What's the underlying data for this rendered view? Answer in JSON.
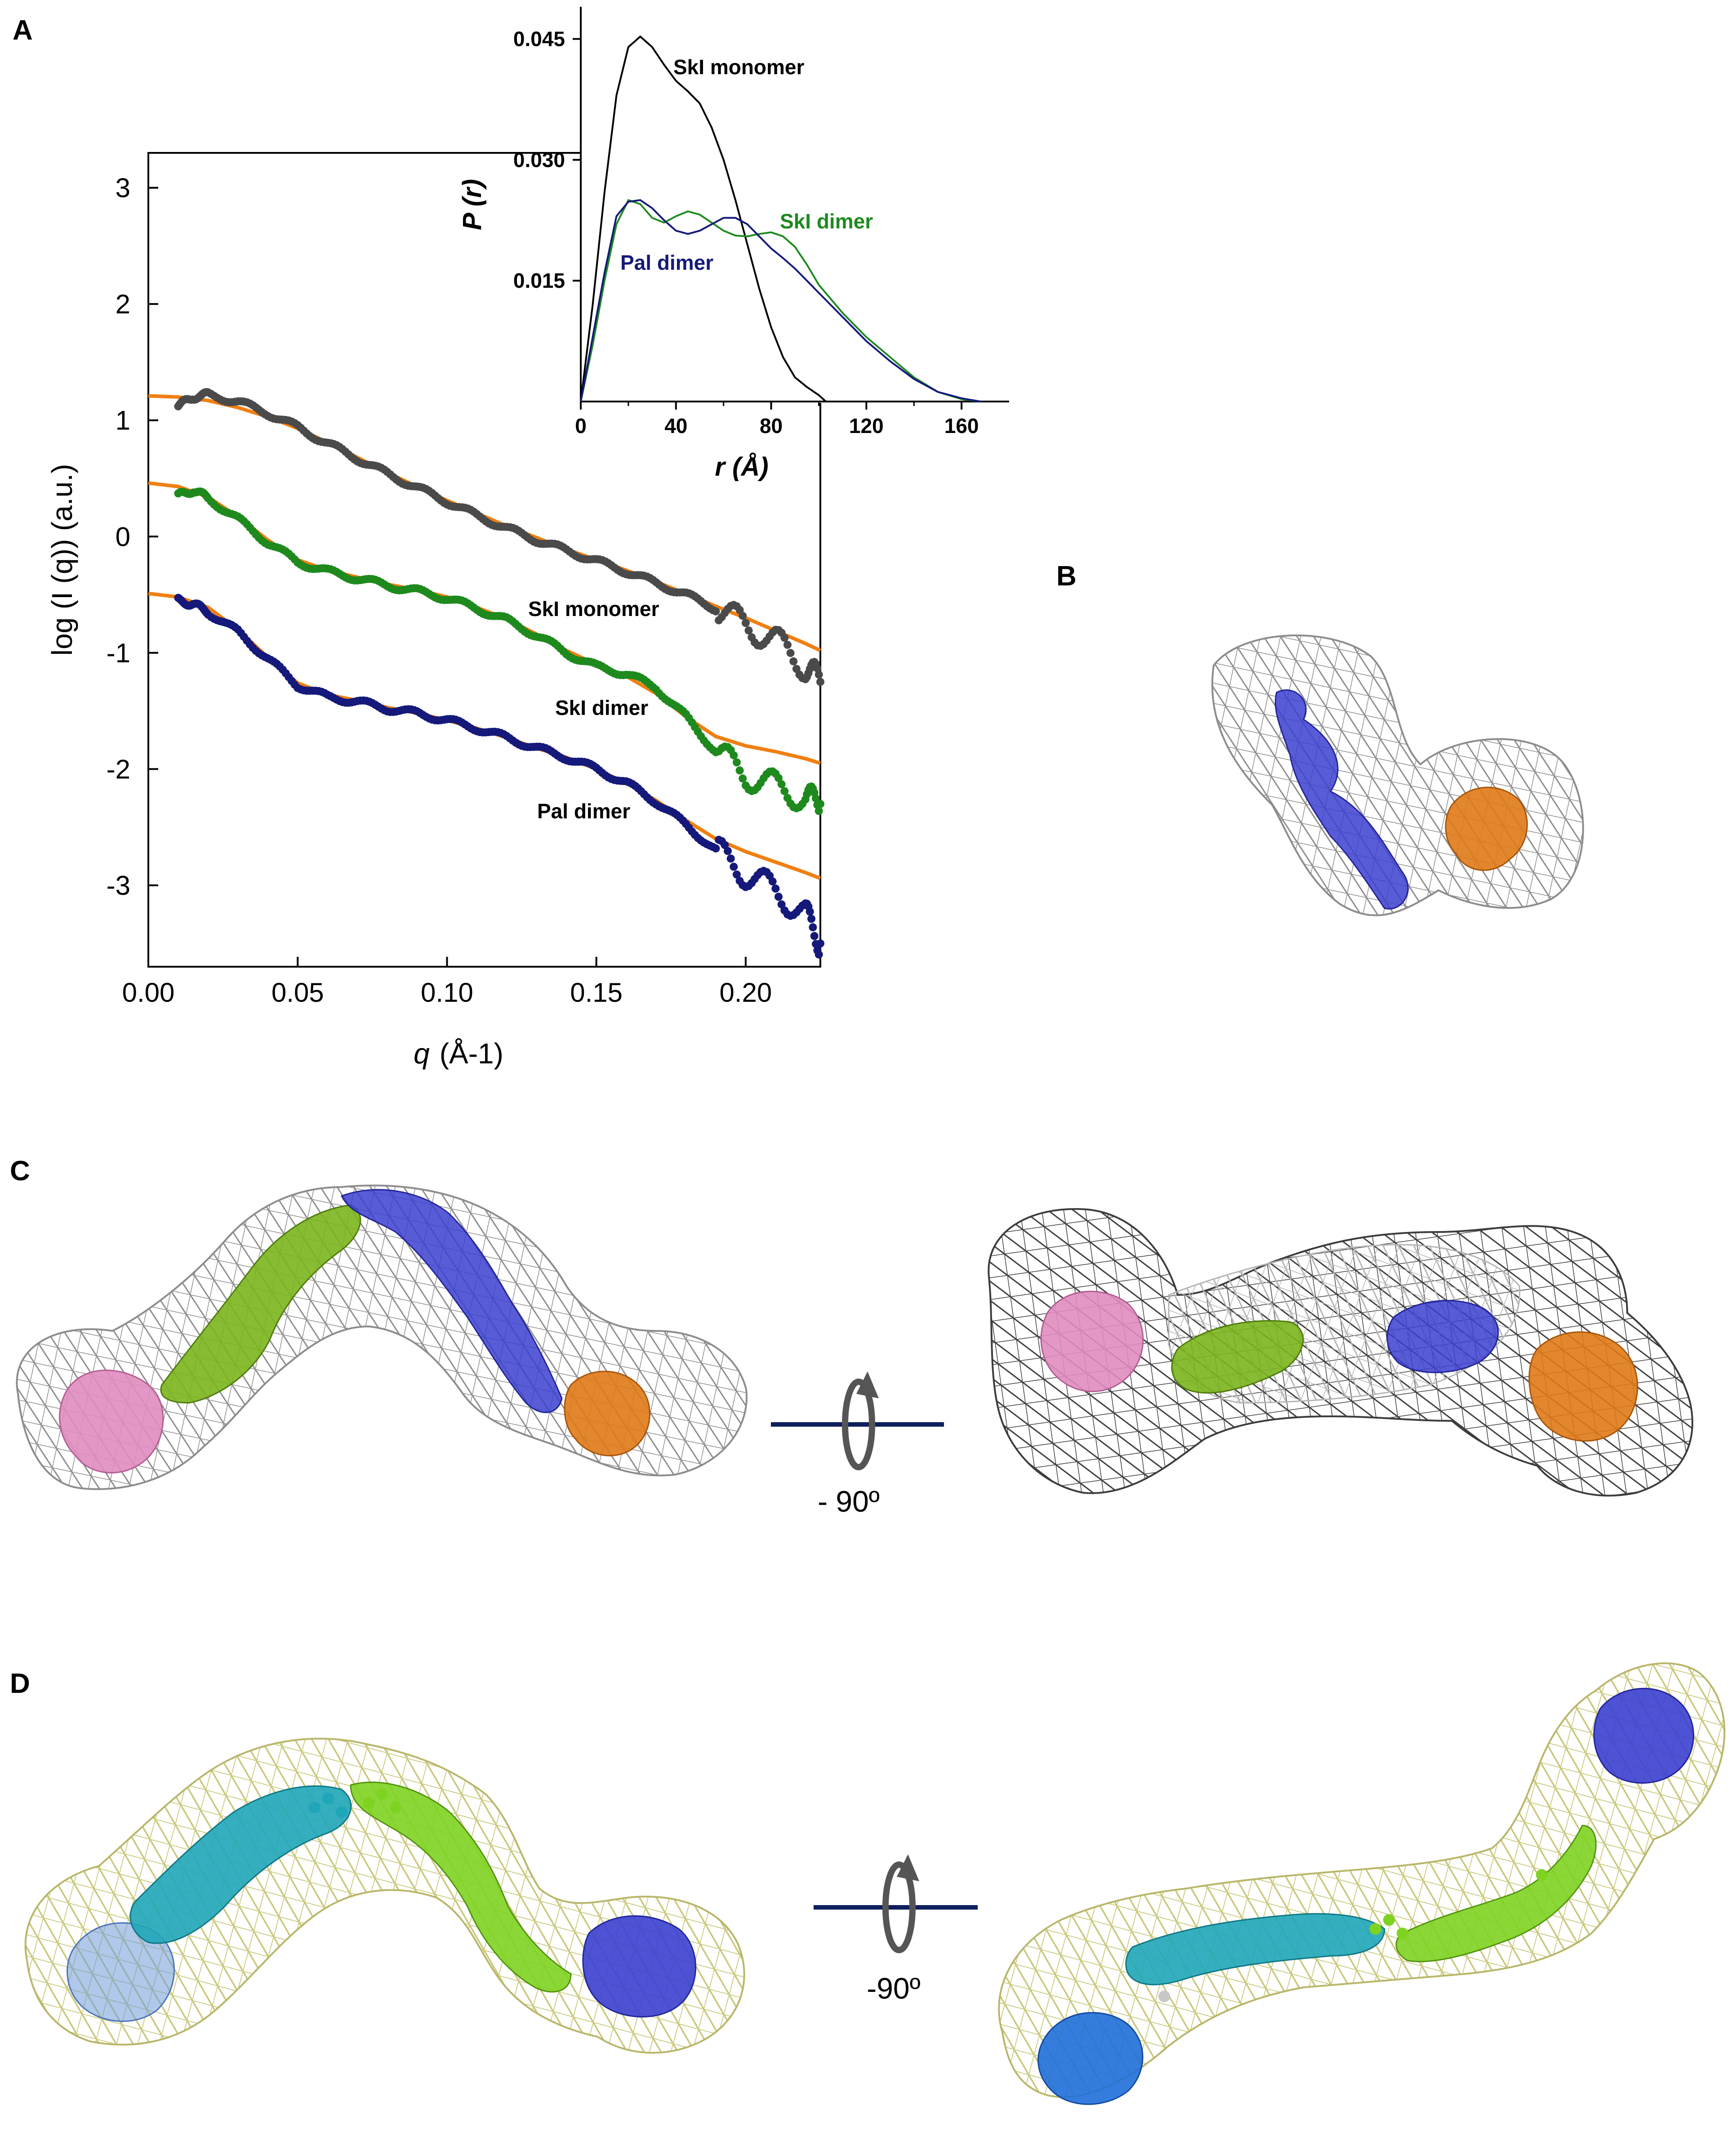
{
  "panels": {
    "A": "A",
    "B": "B",
    "C": "C",
    "D": "D"
  },
  "chart_data": [
    {
      "type": "scatter",
      "panel": "A",
      "xlabel_var": "q",
      "xlabel_unit": "(Å-1)",
      "ylabel": "log (I (q))   (a.u.)",
      "xlim": [
        0.0,
        0.225
      ],
      "ylim": [
        -3.7,
        3.3
      ],
      "xticks": [
        "0.00",
        "0.05",
        "0.10",
        "0.15",
        "0.20"
      ],
      "yticks": [
        "3",
        "2",
        "1",
        "0",
        "-1",
        "-2",
        "-3"
      ],
      "fit_color": "#f07f10",
      "series": [
        {
          "name": "SkI monomer",
          "color": "#4a4a4a",
          "x": [
            0.01,
            0.015,
            0.02,
            0.03,
            0.04,
            0.05,
            0.06,
            0.07,
            0.08,
            0.09,
            0.1,
            0.11,
            0.12,
            0.13,
            0.14,
            0.15,
            0.16,
            0.17,
            0.18,
            0.19,
            0.2,
            0.21,
            0.22,
            0.225
          ],
          "y": [
            1.12,
            1.2,
            1.22,
            1.16,
            1.06,
            0.94,
            0.8,
            0.67,
            0.54,
            0.42,
            0.3,
            0.18,
            0.07,
            -0.03,
            -0.12,
            -0.21,
            -0.3,
            -0.4,
            -0.5,
            -0.62,
            -0.76,
            -0.9,
            -1.12,
            -1.25
          ],
          "fit_x": [
            0.0,
            0.01,
            0.02,
            0.03,
            0.04,
            0.05,
            0.06,
            0.07,
            0.08,
            0.09,
            0.1,
            0.11,
            0.12,
            0.13,
            0.14,
            0.15,
            0.16,
            0.17,
            0.18,
            0.19,
            0.2,
            0.21,
            0.22,
            0.225
          ],
          "fit_y": [
            1.21,
            1.2,
            1.17,
            1.11,
            1.03,
            0.93,
            0.81,
            0.68,
            0.55,
            0.43,
            0.31,
            0.2,
            0.09,
            -0.01,
            -0.11,
            -0.2,
            -0.29,
            -0.39,
            -0.49,
            -0.6,
            -0.7,
            -0.81,
            -0.92,
            -0.98
          ]
        },
        {
          "name": "SkI dimer",
          "color": "#1e8a1e",
          "x": [
            0.01,
            0.015,
            0.02,
            0.03,
            0.04,
            0.05,
            0.06,
            0.07,
            0.08,
            0.09,
            0.1,
            0.11,
            0.12,
            0.13,
            0.14,
            0.15,
            0.16,
            0.17,
            0.18,
            0.19,
            0.2,
            0.21,
            0.22,
            0.225
          ],
          "y": [
            0.35,
            0.4,
            0.33,
            0.15,
            -0.05,
            -0.22,
            -0.3,
            -0.36,
            -0.42,
            -0.47,
            -0.53,
            -0.62,
            -0.72,
            -0.85,
            -1.0,
            -1.12,
            -1.18,
            -1.3,
            -1.55,
            -1.85,
            -2.05,
            -2.15,
            -2.25,
            -2.3
          ],
          "fit_x": [
            0.0,
            0.01,
            0.02,
            0.03,
            0.04,
            0.05,
            0.06,
            0.07,
            0.08,
            0.09,
            0.1,
            0.11,
            0.12,
            0.13,
            0.14,
            0.15,
            0.16,
            0.17,
            0.18,
            0.19,
            0.2,
            0.21,
            0.22,
            0.225
          ],
          "fit_y": [
            0.46,
            0.43,
            0.34,
            0.17,
            -0.03,
            -0.2,
            -0.29,
            -0.35,
            -0.41,
            -0.46,
            -0.52,
            -0.61,
            -0.71,
            -0.84,
            -0.98,
            -1.1,
            -1.2,
            -1.35,
            -1.55,
            -1.72,
            -1.8,
            -1.85,
            -1.91,
            -1.95
          ]
        },
        {
          "name": "Pal dimer",
          "color": "#14197a",
          "x": [
            0.01,
            0.015,
            0.02,
            0.03,
            0.04,
            0.05,
            0.06,
            0.07,
            0.08,
            0.09,
            0.1,
            0.11,
            0.12,
            0.13,
            0.14,
            0.15,
            0.16,
            0.17,
            0.18,
            0.19,
            0.2,
            0.21,
            0.22,
            0.225
          ],
          "y": [
            -0.55,
            -0.58,
            -0.65,
            -0.82,
            -1.05,
            -1.28,
            -1.38,
            -1.42,
            -1.48,
            -1.52,
            -1.58,
            -1.65,
            -1.73,
            -1.82,
            -1.9,
            -2.0,
            -2.12,
            -2.28,
            -2.48,
            -2.7,
            -2.9,
            -3.05,
            -3.25,
            -3.5
          ],
          "fit_x": [
            0.0,
            0.01,
            0.02,
            0.03,
            0.04,
            0.05,
            0.06,
            0.07,
            0.08,
            0.09,
            0.1,
            0.11,
            0.12,
            0.13,
            0.14,
            0.15,
            0.16,
            0.17,
            0.18,
            0.19,
            0.2,
            0.21,
            0.22,
            0.225
          ],
          "fit_y": [
            -0.49,
            -0.52,
            -0.61,
            -0.8,
            -1.04,
            -1.26,
            -1.36,
            -1.41,
            -1.47,
            -1.52,
            -1.58,
            -1.65,
            -1.73,
            -1.82,
            -1.9,
            -2.0,
            -2.12,
            -2.27,
            -2.44,
            -2.6,
            -2.71,
            -2.8,
            -2.89,
            -2.94
          ]
        }
      ],
      "annotations": [
        "SkI monomer",
        "SkI dimer",
        "Pal dimer"
      ]
    },
    {
      "type": "line",
      "panel": "A-inset",
      "xlabel": "r (Å)",
      "ylabel": "P (r)",
      "xlim": [
        0,
        180
      ],
      "ylim": [
        0,
        0.049
      ],
      "xticks": [
        "0",
        "40",
        "80",
        "120",
        "160"
      ],
      "yticks": [
        "0.015",
        "0.030",
        "0.045"
      ],
      "series": [
        {
          "name": "SkI monomer",
          "color": "#000000",
          "x": [
            0,
            5,
            10,
            15,
            20,
            25,
            30,
            35,
            40,
            45,
            50,
            55,
            60,
            65,
            70,
            75,
            80,
            85,
            90,
            95,
            100,
            103
          ],
          "y": [
            0,
            0.012,
            0.026,
            0.038,
            0.044,
            0.0453,
            0.044,
            0.0418,
            0.0398,
            0.0385,
            0.037,
            0.034,
            0.03,
            0.025,
            0.0195,
            0.014,
            0.0092,
            0.0055,
            0.003,
            0.0018,
            0.0008,
            0
          ]
        },
        {
          "name": "SkI dimer",
          "color": "#1e8a1e",
          "x": [
            0,
            5,
            10,
            15,
            20,
            25,
            30,
            35,
            40,
            45,
            50,
            55,
            60,
            65,
            70,
            75,
            80,
            85,
            90,
            95,
            100,
            110,
            120,
            130,
            140,
            150,
            160,
            168
          ],
          "y": [
            0,
            0.007,
            0.015,
            0.022,
            0.025,
            0.0245,
            0.0228,
            0.0222,
            0.023,
            0.0236,
            0.0232,
            0.0222,
            0.0212,
            0.0206,
            0.0205,
            0.0208,
            0.021,
            0.0205,
            0.0192,
            0.017,
            0.0145,
            0.011,
            0.008,
            0.0055,
            0.003,
            0.0012,
            0.0003,
            0
          ]
        },
        {
          "name": "Pal dimer",
          "color": "#14197a",
          "x": [
            0,
            5,
            10,
            15,
            20,
            25,
            30,
            35,
            40,
            45,
            50,
            55,
            60,
            65,
            70,
            75,
            80,
            85,
            90,
            95,
            100,
            110,
            120,
            130,
            140,
            150,
            160,
            168
          ],
          "y": [
            0,
            0.008,
            0.016,
            0.023,
            0.0248,
            0.025,
            0.024,
            0.0225,
            0.0212,
            0.0208,
            0.0212,
            0.022,
            0.0228,
            0.0228,
            0.022,
            0.0205,
            0.019,
            0.0178,
            0.0165,
            0.015,
            0.0135,
            0.0105,
            0.0075,
            0.005,
            0.0028,
            0.0012,
            0.0004,
            0
          ]
        }
      ],
      "annotations": [
        "SkI monomer",
        "SkI dimer",
        "Pal dimer"
      ]
    }
  ],
  "rotations": {
    "C": "- 90º",
    "D": "-90º"
  },
  "colors": {
    "mesh_grey": "#8c8c8c",
    "mesh_dark": "#3c3c3c",
    "mesh_yellow": "#c9c77a",
    "axis_navy": "#0d1f5c",
    "ribbon_blue": "#3b3fd0",
    "ribbon_orange": "#e07a18",
    "ribbon_pink": "#e08cbf",
    "ribbon_green": "#7ab51d",
    "ribbon_cyan": "#1fa6b8",
    "ribbon_lime": "#7ed321",
    "ribbon_skyblue": "#1f6fd8"
  }
}
